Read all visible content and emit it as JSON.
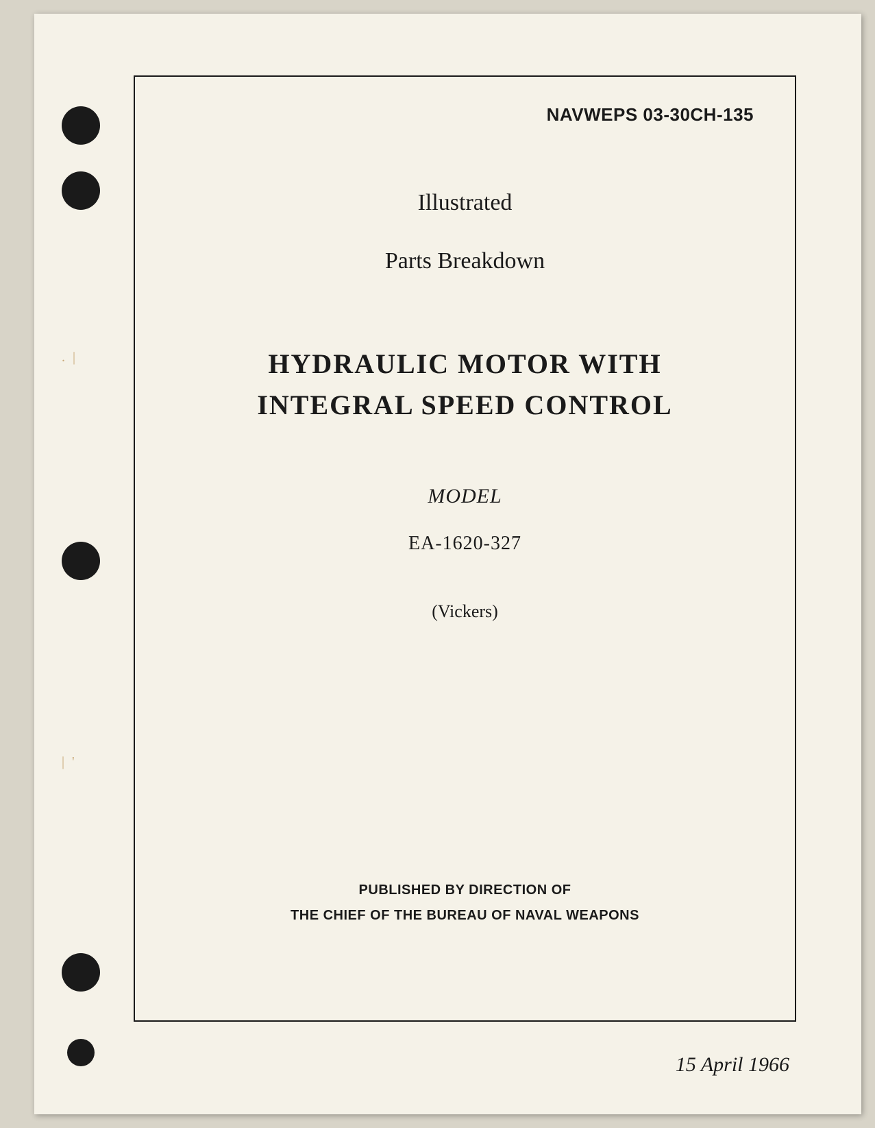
{
  "document": {
    "id": "NAVWEPS 03-30CH-135",
    "subtitle_line1": "Illustrated",
    "subtitle_line2": "Parts Breakdown",
    "title_line1": "HYDRAULIC MOTOR WITH",
    "title_line2": "INTEGRAL SPEED CONTROL",
    "model_label": "MODEL",
    "model_number": "EA-1620-327",
    "manufacturer": "(Vickers)",
    "publisher_line1": "PUBLISHED BY DIRECTION OF",
    "publisher_line2": "THE CHIEF OF THE BUREAU OF NAVAL WEAPONS",
    "date": "15 April 1966"
  },
  "style": {
    "page_bg": "#f5f2e8",
    "scanner_bg": "#d8d4c8",
    "text_color": "#1a1a1a",
    "hole_color": "#1a1a1a",
    "artifact_color": "#c9a878"
  }
}
